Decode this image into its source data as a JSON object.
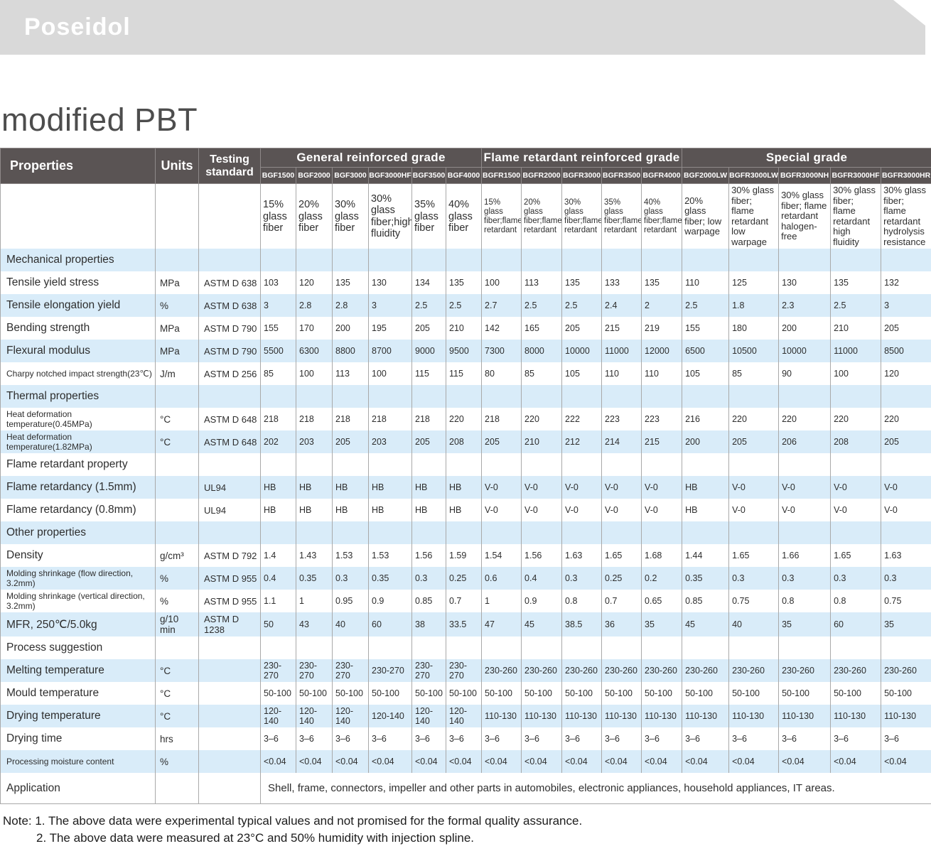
{
  "brand": "Poseidol",
  "page_title": "modified PBT",
  "colors": {
    "header_bg": "#5a5454",
    "alt_row_bg": "#d9ecf9",
    "banner_bg": "#d9d9d9"
  },
  "table": {
    "header": {
      "properties": "Properties",
      "units": "Units",
      "testing_standard": "Testing standard",
      "groups": [
        {
          "label": "General reinforced grade",
          "span": 6
        },
        {
          "label": "Flame retardant reinforced grade",
          "span": 5
        },
        {
          "label": "Special grade",
          "span": 5
        }
      ],
      "grades": [
        "BGF1500",
        "BGF2000",
        "BGF3000",
        "BGF3000HF",
        "BGF3500",
        "BGF4000",
        "BGFR1500",
        "BGFR2000",
        "BGFR3000",
        "BGFR3500",
        "BGFR4000",
        "BGF2000LW",
        "BGFR3000LW",
        "BGFR3000NH",
        "BGFR3000HF",
        "BGFR3000HR"
      ],
      "descriptions": [
        "15% glass fiber",
        "20% glass fiber",
        "30% glass fiber",
        "30% glass fiber;high fluidity",
        "35% glass fiber",
        "40% glass fiber",
        "15% glass fiber;flame retardant",
        "20% glass fiber;flame retardant",
        "30% glass fiber;flame retardant",
        "35% glass fiber;flame retardant",
        "40% glass fiber;flame retardant",
        "20% glass fiber; low warpage",
        "30% glass fiber; flame retardant low warpage",
        "30% glass fiber; flame retardant halogen-free",
        "30% glass fiber; flame retardant high fluidity",
        "30% glass fiber; flame retardant hydrolysis resistance"
      ]
    },
    "rows": [
      {
        "type": "section",
        "label": "Mechanical properties"
      },
      {
        "type": "data",
        "label": "Tensile yield stress",
        "unit": "MPa",
        "standard": "ASTM D 638",
        "values": [
          "103",
          "120",
          "135",
          "130",
          "134",
          "135",
          "100",
          "113",
          "135",
          "133",
          "135",
          "110",
          "125",
          "130",
          "135",
          "132"
        ]
      },
      {
        "type": "data",
        "label": "Tensile elongation yield",
        "unit": "%",
        "standard": "ASTM D 638",
        "values": [
          "3",
          "2.8",
          "2.8",
          "3",
          "2.5",
          "2.5",
          "2.7",
          "2.5",
          "2.5",
          "2.4",
          "2",
          "2.5",
          "1.8",
          "2.3",
          "2.5",
          "3"
        ]
      },
      {
        "type": "data",
        "label": "Bending strength",
        "unit": "MPa",
        "standard": "ASTM D 790",
        "values": [
          "155",
          "170",
          "200",
          "195",
          "205",
          "210",
          "142",
          "165",
          "205",
          "215",
          "219",
          "155",
          "180",
          "200",
          "210",
          "205"
        ]
      },
      {
        "type": "data",
        "label": "Flexural modulus",
        "unit": "MPa",
        "standard": "ASTM D 790",
        "values": [
          "5500",
          "6300",
          "8800",
          "8700",
          "9000",
          "9500",
          "7300",
          "8000",
          "10000",
          "11000",
          "12000",
          "6500",
          "10500",
          "10000",
          "11000",
          "8500"
        ]
      },
      {
        "type": "data",
        "label": "Charpy notched impact strength(23℃)",
        "unit": "J/m",
        "standard": "ASTM D 256",
        "values": [
          "85",
          "100",
          "113",
          "100",
          "115",
          "115",
          "80",
          "85",
          "105",
          "110",
          "110",
          "105",
          "85",
          "90",
          "100",
          "120"
        ]
      },
      {
        "type": "section",
        "label": "Thermal properties"
      },
      {
        "type": "data",
        "label": "Heat deformation temperature(0.45MPa)",
        "unit": "°C",
        "standard": "ASTM D 648",
        "values": [
          "218",
          "218",
          "218",
          "218",
          "218",
          "220",
          "218",
          "220",
          "222",
          "223",
          "223",
          "216",
          "220",
          "220",
          "220",
          "220"
        ]
      },
      {
        "type": "data",
        "label": "Heat deformation temperature(1.82MPa)",
        "unit": "°C",
        "standard": "ASTM D 648",
        "values": [
          "202",
          "203",
          "205",
          "203",
          "205",
          "208",
          "205",
          "210",
          "212",
          "214",
          "215",
          "200",
          "205",
          "206",
          "208",
          "205"
        ]
      },
      {
        "type": "section",
        "label": "Flame retardant property"
      },
      {
        "type": "data",
        "label": "Flame retardancy (1.5mm)",
        "unit": "",
        "standard": "UL94",
        "values": [
          "HB",
          "HB",
          "HB",
          "HB",
          "HB",
          "HB",
          "V-0",
          "V-0",
          "V-0",
          "V-0",
          "V-0",
          "HB",
          "V-0",
          "V-0",
          "V-0",
          "V-0"
        ]
      },
      {
        "type": "data",
        "label": "Flame retardancy (0.8mm)",
        "unit": "",
        "standard": "UL94",
        "values": [
          "HB",
          "HB",
          "HB",
          "HB",
          "HB",
          "HB",
          "V-0",
          "V-0",
          "V-0",
          "V-0",
          "V-0",
          "HB",
          "V-0",
          "V-0",
          "V-0",
          "V-0"
        ]
      },
      {
        "type": "section",
        "label": "Other properties"
      },
      {
        "type": "data",
        "label": "Density",
        "unit": "g/cm³",
        "standard": "ASTM D 792",
        "values": [
          "1.4",
          "1.43",
          "1.53",
          "1.53",
          "1.56",
          "1.59",
          "1.54",
          "1.56",
          "1.63",
          "1.65",
          "1.68",
          "1.44",
          "1.65",
          "1.66",
          "1.65",
          "1.63"
        ]
      },
      {
        "type": "data",
        "label": "Molding shrinkage (flow direction, 3.2mm)",
        "unit": "%",
        "standard": "ASTM D 955",
        "values": [
          "0.4",
          "0.35",
          "0.3",
          "0.35",
          "0.3",
          "0.25",
          "0.6",
          "0.4",
          "0.3",
          "0.25",
          "0.2",
          "0.35",
          "0.3",
          "0.3",
          "0.3",
          "0.3"
        ]
      },
      {
        "type": "data",
        "label": "Molding shrinkage (vertical direction, 3.2mm)",
        "unit": "%",
        "standard": "ASTM D 955",
        "values": [
          "1.1",
          "1",
          "0.95",
          "0.9",
          "0.85",
          "0.7",
          "1",
          "0.9",
          "0.8",
          "0.7",
          "0.65",
          "0.85",
          "0.75",
          "0.8",
          "0.8",
          "0.75"
        ]
      },
      {
        "type": "data",
        "label": "MFR, 250℃/5.0kg",
        "unit": "g/10 min",
        "standard": "ASTM D 1238",
        "values": [
          "50",
          "43",
          "40",
          "60",
          "38",
          "33.5",
          "47",
          "45",
          "38.5",
          "36",
          "35",
          "45",
          "40",
          "35",
          "60",
          "35"
        ]
      },
      {
        "type": "section",
        "label": "Process suggestion"
      },
      {
        "type": "data",
        "label": "Melting temperature",
        "unit": "°C",
        "standard": "",
        "values": [
          "230-270",
          "230-270",
          "230-270",
          "230-270",
          "230-270",
          "230-270",
          "230-260",
          "230-260",
          "230-260",
          "230-260",
          "230-260",
          "230-260",
          "230-260",
          "230-260",
          "230-260",
          "230-260"
        ]
      },
      {
        "type": "data",
        "label": "Mould temperature",
        "unit": "°C",
        "standard": "",
        "values": [
          "50-100",
          "50-100",
          "50-100",
          "50-100",
          "50-100",
          "50-100",
          "50-100",
          "50-100",
          "50-100",
          "50-100",
          "50-100",
          "50-100",
          "50-100",
          "50-100",
          "50-100",
          "50-100"
        ]
      },
      {
        "type": "data",
        "label": "Drying temperature",
        "unit": "°C",
        "standard": "",
        "values": [
          "120-140",
          "120-140",
          "120-140",
          "120-140",
          "120-140",
          "120-140",
          "110-130",
          "110-130",
          "110-130",
          "110-130",
          "110-130",
          "110-130",
          "110-130",
          "110-130",
          "110-130",
          "110-130"
        ]
      },
      {
        "type": "data",
        "label": "Drying time",
        "unit": "hrs",
        "standard": "",
        "values": [
          "3–6",
          "3–6",
          "3–6",
          "3–6",
          "3–6",
          "3–6",
          "3–6",
          "3–6",
          "3–6",
          "3–6",
          "3–6",
          "3–6",
          "3–6",
          "3–6",
          "3–6",
          "3–6"
        ]
      },
      {
        "type": "data",
        "label": "Processing moisture content",
        "unit": "%",
        "standard": "",
        "values": [
          "<0.04",
          "<0.04",
          "<0.04",
          "<0.04",
          "<0.04",
          "<0.04",
          "<0.04",
          "<0.04",
          "<0.04",
          "<0.04",
          "<0.04",
          "<0.04",
          "<0.04",
          "<0.04",
          "<0.04",
          "<0.04"
        ]
      },
      {
        "type": "application",
        "label": "Application",
        "text": "Shell, frame, connectors, impeller and other parts in automobiles, electronic appliances, household appliances, IT areas."
      }
    ]
  },
  "notes": {
    "line1": "Note: 1. The above data were experimental typical values and not promised for the formal quality assurance.",
    "line2": "2. The above data were measured at 23°C and 50% humidity with injection spline."
  }
}
